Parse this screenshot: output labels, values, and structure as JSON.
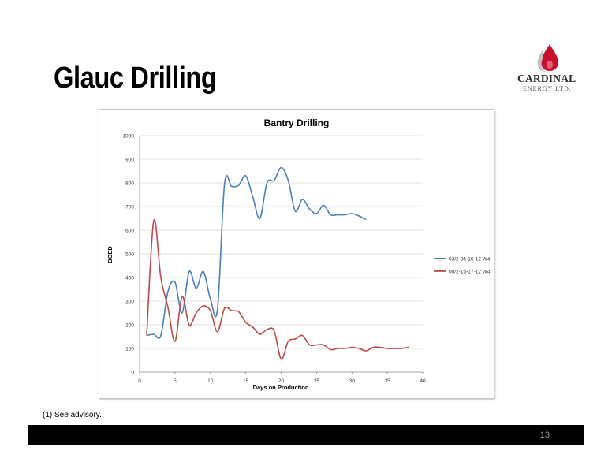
{
  "slide": {
    "title": "Glauc Drilling",
    "footnote": "(1)  See advisory.",
    "page_number": "13"
  },
  "logo": {
    "name": "CARDINAL",
    "subtitle": "ENERGY LTD."
  },
  "colors": {
    "series_blue": "#4a7ebb",
    "series_red": "#be4b48",
    "footer_bar": "#000000",
    "logo_flame": "#c8102e"
  },
  "chart_data": {
    "type": "line",
    "title": "Bantry Drilling",
    "xlabel": "Days on Production",
    "ylabel": "BOED",
    "xlim": [
      0,
      40
    ],
    "ylim": [
      0,
      1000
    ],
    "x_ticks": [
      0,
      5,
      10,
      15,
      20,
      25,
      30,
      35,
      40
    ],
    "y_ticks": [
      0,
      100,
      200,
      300,
      400,
      500,
      600,
      700,
      800,
      900,
      1000
    ],
    "grid": "horizontal",
    "legend_position": "right",
    "series": [
      {
        "name": "03/2-35-16-12 W4",
        "color": "#4a7ebb",
        "x": [
          1,
          2,
          3,
          4,
          5,
          6,
          7,
          8,
          9,
          10,
          11,
          12,
          13,
          14,
          15,
          16,
          17,
          18,
          19,
          20,
          21,
          22,
          23,
          24,
          25,
          26,
          27,
          28,
          29,
          30,
          31,
          32
        ],
        "y": [
          155,
          160,
          155,
          340,
          380,
          250,
          425,
          355,
          425,
          310,
          265,
          795,
          785,
          790,
          830,
          740,
          650,
          800,
          810,
          865,
          810,
          680,
          730,
          690,
          670,
          705,
          665,
          665,
          665,
          670,
          660,
          645
        ]
      },
      {
        "name": "00/2-15-17-12 W4",
        "color": "#be4b48",
        "x": [
          1,
          2,
          3,
          4,
          5,
          6,
          7,
          8,
          9,
          10,
          11,
          12,
          13,
          14,
          15,
          16,
          17,
          18,
          19,
          20,
          21,
          22,
          23,
          24,
          25,
          26,
          27,
          28,
          29,
          30,
          31,
          32,
          33,
          34,
          35,
          36,
          37,
          38
        ],
        "y": [
          155,
          640,
          400,
          275,
          130,
          320,
          200,
          250,
          280,
          260,
          170,
          270,
          260,
          255,
          210,
          190,
          160,
          180,
          175,
          55,
          130,
          140,
          155,
          115,
          115,
          115,
          95,
          100,
          100,
          105,
          100,
          90,
          105,
          105,
          100,
          100,
          100,
          105
        ]
      }
    ]
  }
}
